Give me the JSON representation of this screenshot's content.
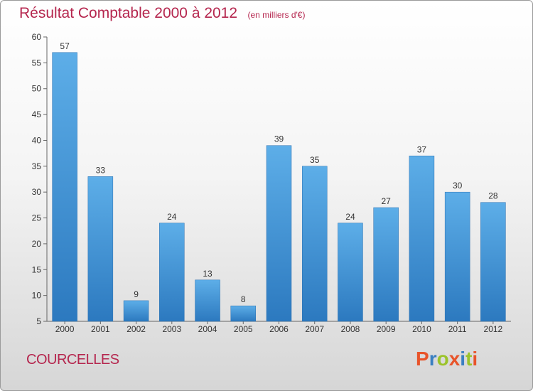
{
  "title": "Résultat Comptable 2000 à 2012",
  "unit": "(en milliers d'€)",
  "place": "COURCELLES",
  "logo": {
    "text": "Proxiti",
    "colors": [
      "#e8542a",
      "#3a7fc1",
      "#9bc32a",
      "#e8542a",
      "#3a7fc1",
      "#9bc32a",
      "#e8542a"
    ]
  },
  "colors": {
    "bar_top": "#5daee8",
    "bar_bottom": "#2c79bf",
    "title": "#b5264e"
  },
  "chart_data": {
    "type": "bar",
    "title": "Résultat Comptable 2000 à 2012",
    "xlabel": "",
    "ylabel": "",
    "categories": [
      "2000",
      "2001",
      "2002",
      "2003",
      "2004",
      "2005",
      "2006",
      "2007",
      "2008",
      "2009",
      "2010",
      "2011",
      "2012"
    ],
    "values": [
      57,
      33,
      9,
      24,
      13,
      8,
      39,
      35,
      24,
      27,
      37,
      30,
      28
    ],
    "ylim": [
      5,
      60
    ],
    "yticks": [
      5,
      10,
      15,
      20,
      25,
      30,
      35,
      40,
      45,
      50,
      55,
      60
    ],
    "grid": false,
    "data_labels": true
  }
}
